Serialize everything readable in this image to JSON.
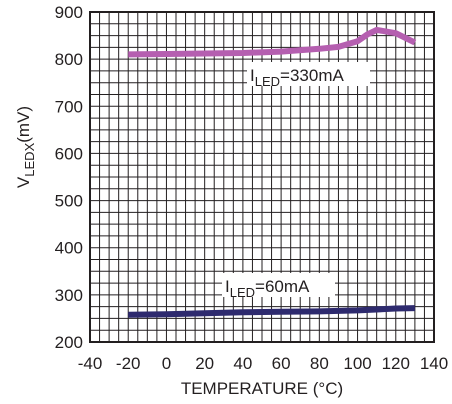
{
  "chart_data": {
    "type": "line",
    "xlabel": "TEMPERATURE (°C)",
    "ylabel_main": "V",
    "ylabel_sub": "LEDX",
    "ylabel_tail": "(mV)",
    "xlim": [
      -40,
      140
    ],
    "ylim": [
      200,
      900
    ],
    "xticks": [
      -40,
      -20,
      0,
      20,
      40,
      60,
      80,
      100,
      120,
      140
    ],
    "yticks": [
      200,
      300,
      400,
      500,
      600,
      700,
      800,
      900
    ],
    "x_minor_step": 5,
    "y_minor_step": 25,
    "grid": true,
    "series": [
      {
        "name_main": "I",
        "name_sub": "LED",
        "name_tail": "=330mA",
        "color": "#b55fb0",
        "x": [
          -20,
          0,
          20,
          40,
          60,
          80,
          90,
          100,
          105,
          110,
          120,
          130
        ],
        "y": [
          810,
          811,
          812,
          813,
          816,
          822,
          826,
          838,
          852,
          862,
          855,
          835
        ]
      },
      {
        "name_main": "I",
        "name_sub": "LED",
        "name_tail": "=60mA",
        "color": "#2e2a6e",
        "x": [
          -20,
          0,
          20,
          40,
          60,
          80,
          100,
          120,
          130
        ],
        "y": [
          258,
          259,
          261,
          263,
          264,
          265,
          267,
          271,
          272
        ]
      }
    ]
  }
}
